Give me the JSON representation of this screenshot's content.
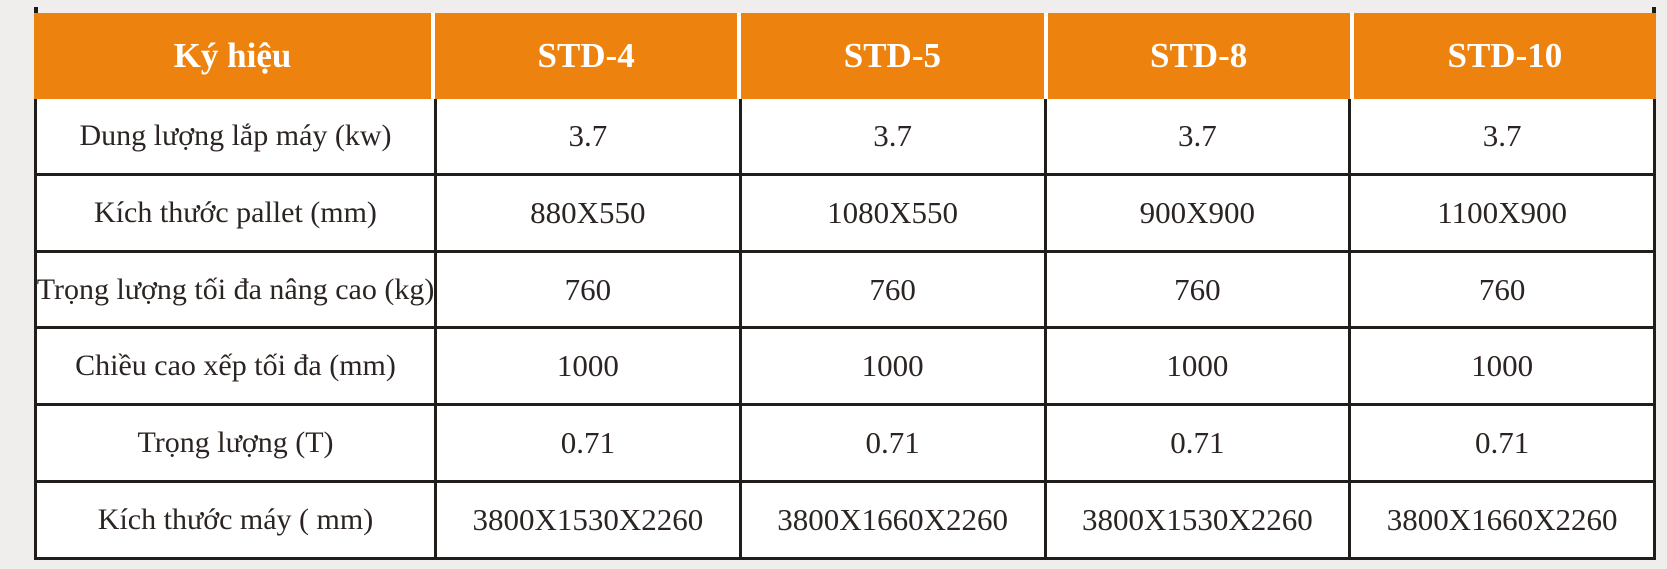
{
  "page": {
    "background_color": "#efeeed"
  },
  "table": {
    "accent_color": "#ed830e",
    "header_text_color": "#ffffff",
    "body_text_color": "#2b2422",
    "border_color": "#211d1b",
    "columns": [
      "Ký hiệu",
      "STD-4",
      "STD-5",
      "STD-8",
      "STD-10"
    ],
    "rows": [
      {
        "label": "Dung lượng lắp máy (kw)",
        "values": [
          "3.7",
          "3.7",
          "3.7",
          "3.7"
        ]
      },
      {
        "label": "Kích thước pallet (mm)",
        "values": [
          "880X550",
          "1080X550",
          "900X900",
          "1100X900"
        ]
      },
      {
        "label": "Trọng lượng tối đa nâng cao (kg)",
        "values": [
          "760",
          "760",
          "760",
          "760"
        ]
      },
      {
        "label": "Chiều cao xếp tối đa (mm)",
        "values": [
          "1000",
          "1000",
          "1000",
          "1000"
        ]
      },
      {
        "label": "Trọng lượng (T)",
        "values": [
          "0.71",
          "0.71",
          "0.71",
          "0.71"
        ]
      },
      {
        "label": "Kích thước máy ( mm)",
        "values": [
          "3800X1530X2260",
          "3800X1660X2260",
          "3800X1530X2260",
          "3800X1660X2260"
        ]
      }
    ]
  }
}
